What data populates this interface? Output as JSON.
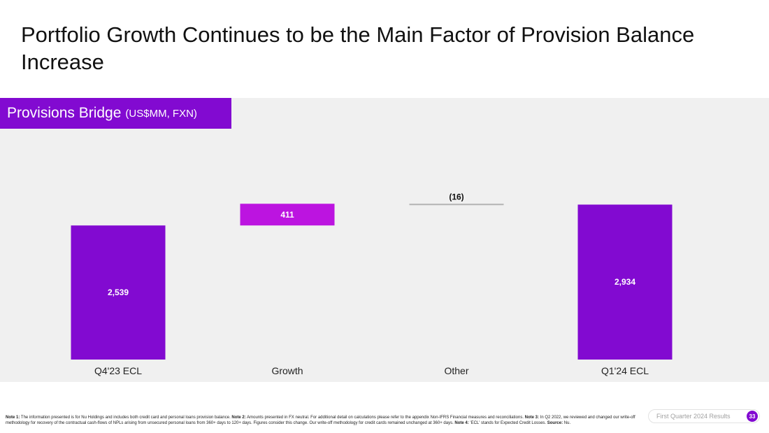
{
  "title": "Portfolio Growth Continues to be the Main Factor of Provision Balance Increase",
  "panel": {
    "heading": "Provisions Bridge",
    "heading_units": "(US$MM, FXN)"
  },
  "colors": {
    "brand_purple": "#820ad1",
    "increase_magenta": "#bc14e0",
    "decrease_gray": "#b3b3b3",
    "panel_bg": "#f0f0f0"
  },
  "chart_data": {
    "type": "bar",
    "subtype": "waterfall",
    "categories": [
      "Q4'23 ECL",
      "Growth",
      "Other",
      "Q1'24 ECL"
    ],
    "values": [
      2539,
      411,
      -16,
      2934
    ],
    "kinds": [
      "total",
      "increase",
      "decrease",
      "total"
    ],
    "data_labels": [
      "2,539",
      "411",
      "(16)",
      "2,934"
    ],
    "ylim": [
      0,
      3000
    ],
    "grid": false,
    "legend": "none"
  },
  "notes": [
    {
      "bold": "Note 1:",
      "text": " The information presented is for Nu Holdings and includes both credit card and personal loans provision balance. "
    },
    {
      "bold": "Note 2:",
      "text": " Amounts presented in FX neutral. For additional detail on calculations please refer to the appendix Non-IFRS Financial measures and reconciliations. "
    },
    {
      "bold": "Note 3:",
      "text": " In Q2 2022, we reviewed and changed our write-off methodology for recovery of the contractual cash-flows of NPLs arising from unsecured personal loans from 360+ days to 120+ days. Figures consider this change. Our write-off methodology for credit cards remained unchanged at 360+ days. "
    },
    {
      "bold": "Note 4:",
      "text": " 'ECL' stands for Expected Credit Losses. "
    },
    {
      "bold": "Source:",
      "text": " Nu."
    }
  ],
  "footer": {
    "label": "First Quarter 2024 Results",
    "page_number": "33"
  }
}
